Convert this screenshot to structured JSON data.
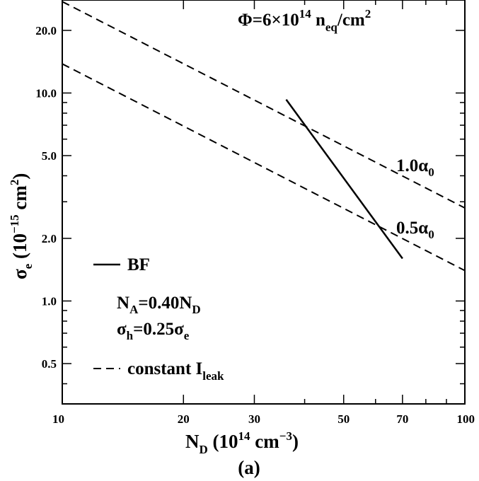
{
  "chart_data": {
    "type": "line",
    "title": "",
    "xlabel": {
      "main": "N",
      "sub": "D",
      "unit_pre": " (10",
      "unit_sup1": "14",
      "unit_mid": " cm",
      "unit_sup2": "−3",
      "unit_post": ")"
    },
    "ylabel": {
      "main": "σ",
      "sub": "e",
      "unit_pre": " (10",
      "unit_sup1": "−15",
      "unit_mid": " cm",
      "unit_sup2": "2",
      "unit_post": ")"
    },
    "xscale": "log",
    "yscale": "log",
    "xlim": [
      10,
      100
    ],
    "ylim": [
      0.32,
      28
    ],
    "x_ticks": [
      {
        "value": 10,
        "label": "10"
      },
      {
        "value": 20,
        "label": "20"
      },
      {
        "value": 30,
        "label": "30"
      },
      {
        "value": 50,
        "label": "50"
      },
      {
        "value": 70,
        "label": "70"
      },
      {
        "value": 100,
        "label": "100"
      }
    ],
    "y_ticks": [
      {
        "value": 0.5,
        "label": "0.5"
      },
      {
        "value": 1.0,
        "label": "1.0"
      },
      {
        "value": 2.0,
        "label": "2.0"
      },
      {
        "value": 5.0,
        "label": "5.0"
      },
      {
        "value": 10.0,
        "label": "10.0"
      },
      {
        "value": 20.0,
        "label": "20.0"
      }
    ],
    "series": [
      {
        "name": "BF",
        "style": "solid",
        "x": [
          36,
          70
        ],
        "y": [
          9.3,
          1.6
        ]
      },
      {
        "name": "1.0α0",
        "style": "dashed",
        "x": [
          10,
          100
        ],
        "y": [
          27.5,
          2.8
        ]
      },
      {
        "name": "0.5α0",
        "style": "dashed",
        "x": [
          10,
          100
        ],
        "y": [
          13.8,
          1.4
        ]
      }
    ],
    "annotations": {
      "fluence": {
        "pre": "Φ=6×10",
        "sup": "14",
        "mid": " n",
        "sub": "eq",
        "post": "/cm",
        "sup2": "2"
      },
      "label_1": {
        "pre": "1.0α",
        "sub": "0"
      },
      "label_2": {
        "pre": "0.5α",
        "sub": "0"
      },
      "legend_bf": "BF",
      "na": {
        "pre": "N",
        "sub1": "A",
        "mid": "=0.40N",
        "sub2": "D"
      },
      "sigma_h": {
        "pre": "σ",
        "sub1": "h",
        "mid": "=0.25σ",
        "sub2": "e"
      },
      "legend_const": {
        "pre": "constant I",
        "sub": "leak"
      }
    },
    "caption": "(a)",
    "grid": false,
    "legend_position": "bottom-left"
  }
}
